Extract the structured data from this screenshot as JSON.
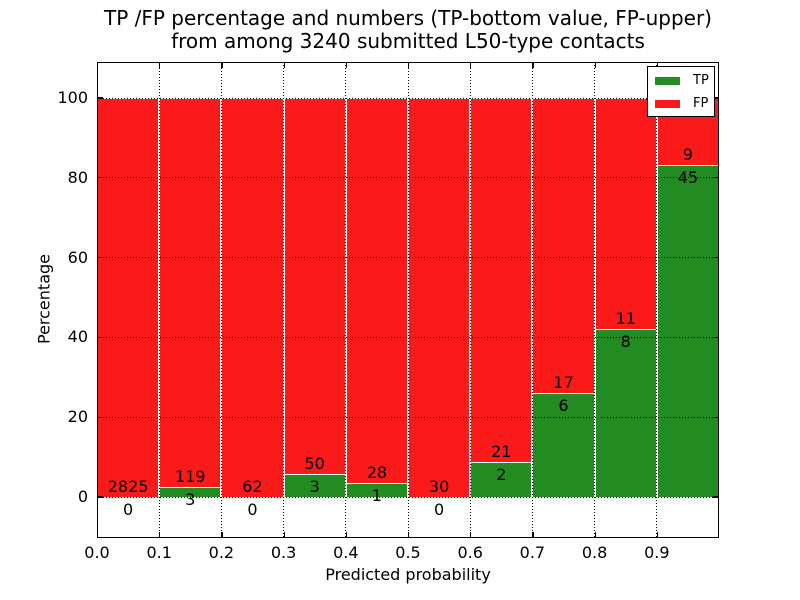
{
  "title": {
    "line1": "TP /FP percentage and numbers (TP-bottom value, FP-upper)",
    "line2": "from among 3240 submitted L50-type contacts"
  },
  "chart_data": {
    "type": "bar",
    "stacked": true,
    "normalized_to_percent": true,
    "title": "TP /FP percentage and numbers (TP-bottom value, FP-upper) from among 3240 submitted L50-type contacts",
    "xlabel": "Predicted probability",
    "ylabel": "Percentage",
    "xlim": [
      0.0,
      1.0
    ],
    "ylim": [
      -10.3,
      109.0
    ],
    "bin_width": 0.1,
    "x_bin_starts": [
      0.0,
      0.1,
      0.2,
      0.3,
      0.4,
      0.5,
      0.6,
      0.7,
      0.8,
      0.9
    ],
    "x_tick_labels": [
      "0.0",
      "0.1",
      "0.2",
      "0.3",
      "0.4",
      "0.5",
      "0.6",
      "0.7",
      "0.8",
      "0.9"
    ],
    "y_ticks": [
      0,
      20,
      40,
      60,
      80,
      100
    ],
    "grid": true,
    "grid_style": "dotted",
    "legend_position": "upper right",
    "series": [
      {
        "name": "TP",
        "color": "#228b22",
        "counts": [
          0,
          3,
          0,
          3,
          1,
          0,
          2,
          6,
          8,
          45
        ]
      },
      {
        "name": "FP",
        "color": "#fa1a1a",
        "counts": [
          2825,
          119,
          62,
          50,
          28,
          30,
          21,
          17,
          11,
          9
        ]
      }
    ],
    "tp_percent_of_bin": [
      0.0,
      2.46,
      0.0,
      5.66,
      3.45,
      0.0,
      8.7,
      26.09,
      42.11,
      83.33
    ],
    "total_contacts": 3240
  },
  "colors": {
    "tp": "#228b22",
    "fp": "#fa1a1a",
    "background": "#ffffff",
    "grid": "#000000",
    "bar_edge": "#ffffff"
  }
}
